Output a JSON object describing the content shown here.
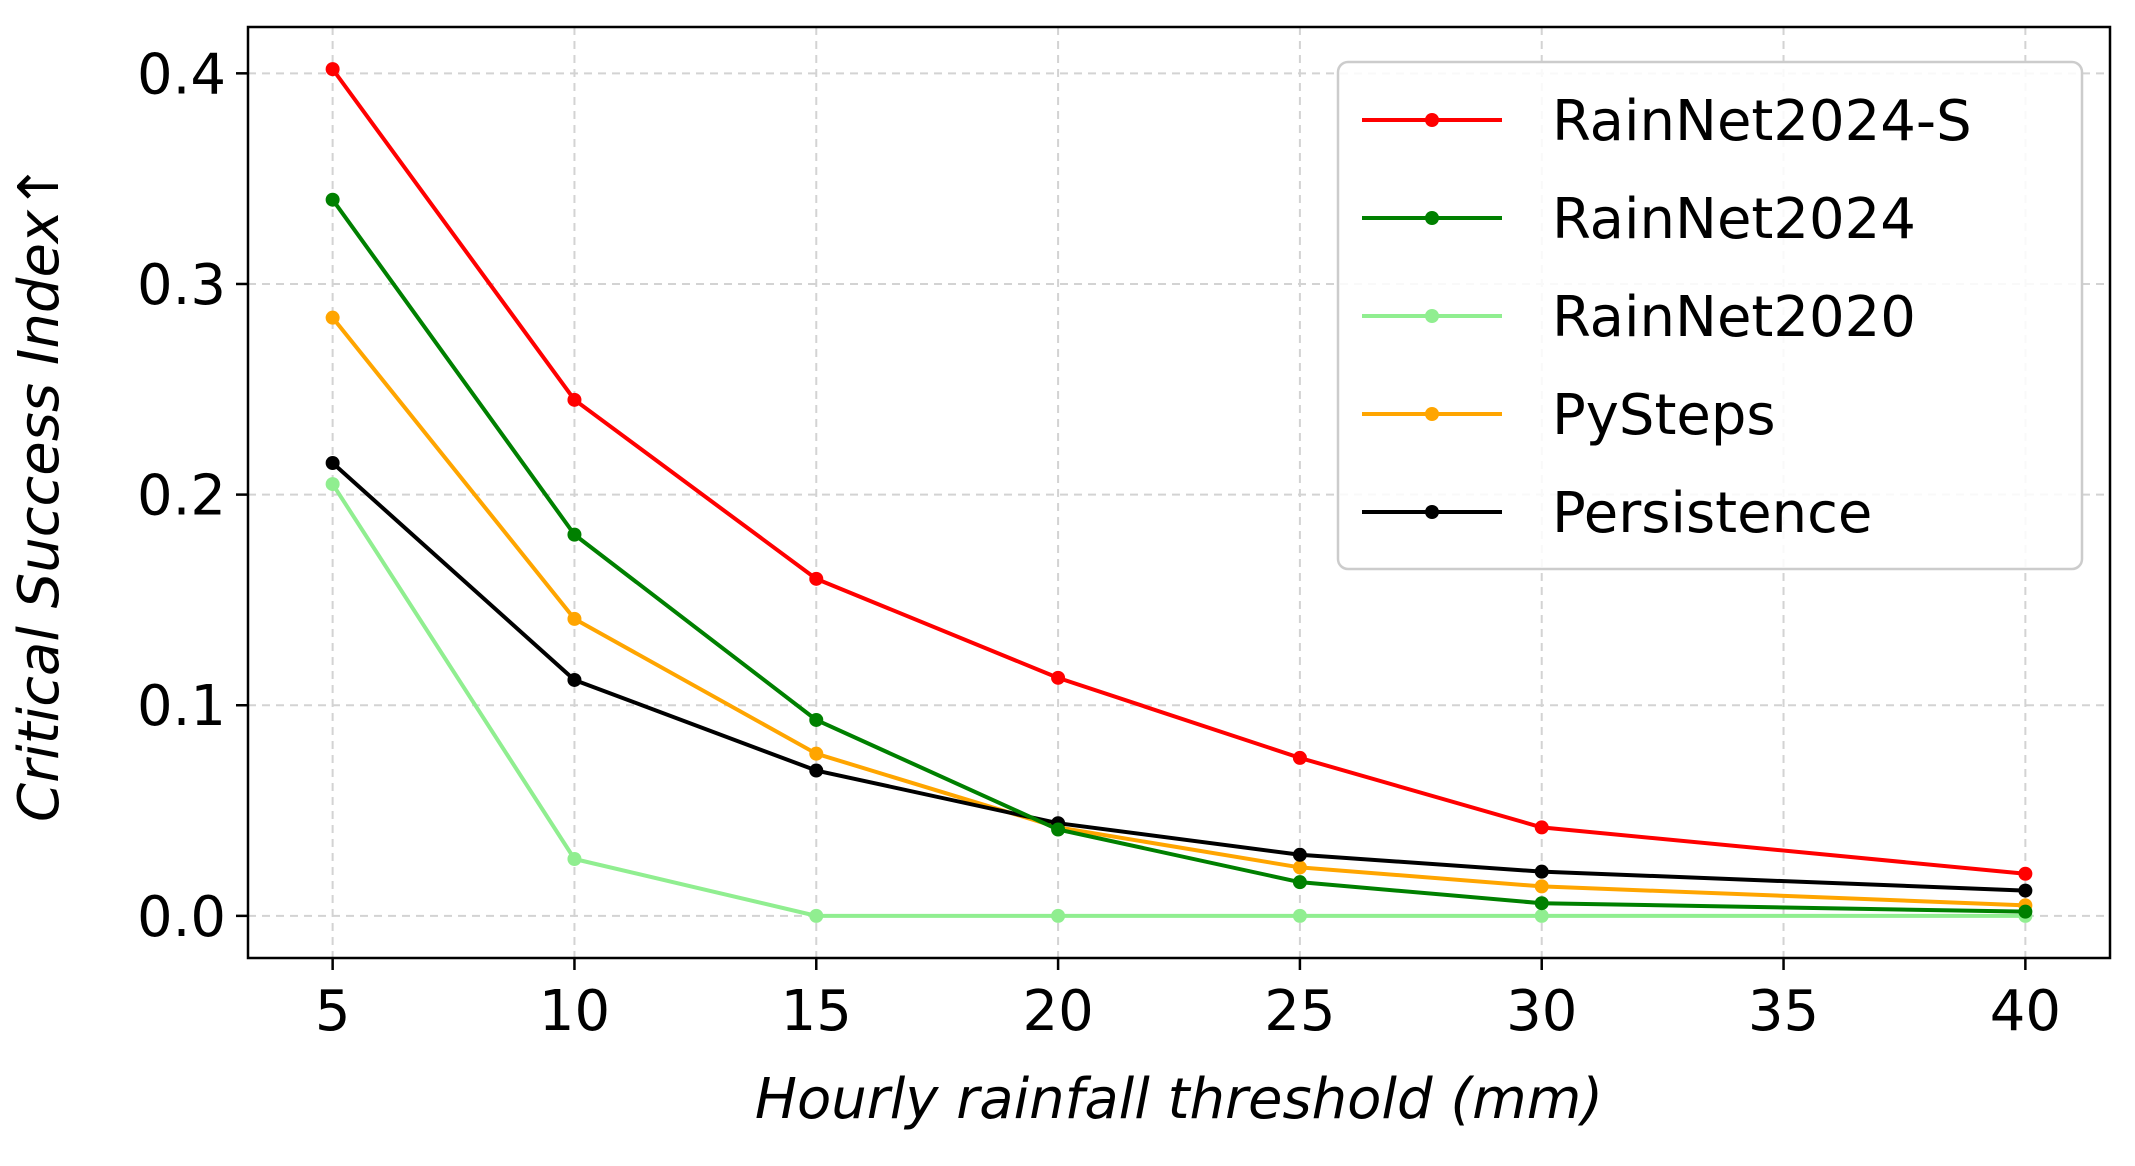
{
  "chart_data": {
    "type": "line",
    "xlabel": "Hourly rainfall threshold (mm)",
    "ylabel": "Critical Success Index↑",
    "x": [
      5,
      10,
      15,
      20,
      25,
      30,
      40
    ],
    "xticks": [
      5,
      10,
      15,
      20,
      25,
      30,
      35,
      40
    ],
    "xtick_labels": [
      "5",
      "10",
      "15",
      "20",
      "25",
      "30",
      "35",
      "40"
    ],
    "yticks": [
      0.0,
      0.1,
      0.2,
      0.3,
      0.4
    ],
    "ytick_labels": [
      "0.0",
      "0.1",
      "0.2",
      "0.3",
      "0.4"
    ],
    "xlim": [
      3.25,
      41.75
    ],
    "ylim": [
      -0.02,
      0.422
    ],
    "grid": true,
    "legend_position": "top-right",
    "series": [
      {
        "name": "RainNet2024-S",
        "color": "#ff0000",
        "values": [
          0.402,
          0.245,
          0.16,
          0.113,
          0.075,
          0.042,
          0.02
        ]
      },
      {
        "name": "RainNet2024",
        "color": "#008000",
        "values": [
          0.34,
          0.181,
          0.093,
          0.041,
          0.016,
          0.006,
          0.002
        ]
      },
      {
        "name": "RainNet2020",
        "color": "#90ee90",
        "values": [
          0.205,
          0.027,
          0.0,
          0.0,
          0.0,
          0.0,
          0.0
        ]
      },
      {
        "name": "PySteps",
        "color": "#ffa500",
        "values": [
          0.284,
          0.141,
          0.077,
          0.042,
          0.023,
          0.014,
          0.005
        ]
      },
      {
        "name": "Persistence",
        "color": "#000000",
        "values": [
          0.215,
          0.112,
          0.069,
          0.044,
          0.029,
          0.021,
          0.012
        ]
      }
    ]
  }
}
